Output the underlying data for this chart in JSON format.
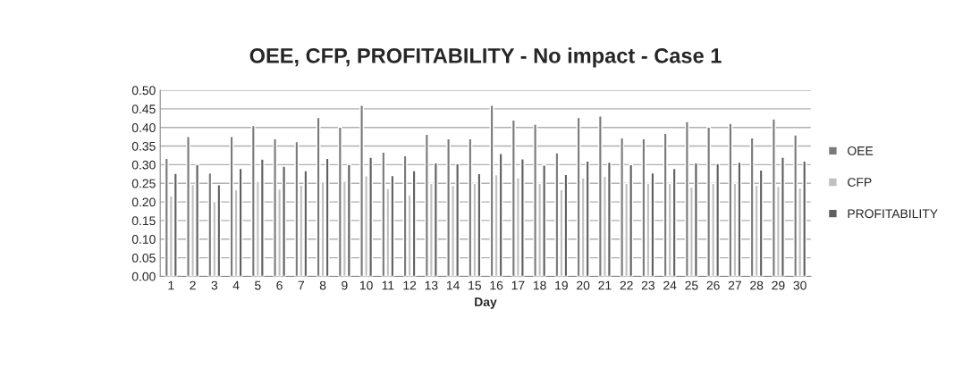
{
  "chart_data": {
    "type": "bar",
    "title": "OEE, CFP, PROFITABILITY - No impact - Case 1",
    "xlabel": "Day",
    "categories": [
      "1",
      "2",
      "3",
      "4",
      "5",
      "6",
      "7",
      "8",
      "9",
      "10",
      "11",
      "12",
      "13",
      "14",
      "15",
      "16",
      "17",
      "18",
      "19",
      "20",
      "21",
      "22",
      "23",
      "24",
      "25",
      "26",
      "27",
      "28",
      "29",
      "30"
    ],
    "series": [
      {
        "name": "OEE",
        "color": "#7a7a7a",
        "values": [
          0.317,
          0.376,
          0.278,
          0.376,
          0.405,
          0.37,
          0.362,
          0.427,
          0.401,
          0.46,
          0.334,
          0.324,
          0.382,
          0.37,
          0.37,
          0.46,
          0.42,
          0.409,
          0.332,
          0.427,
          0.431,
          0.372,
          0.37,
          0.384,
          0.416,
          0.401,
          0.411,
          0.372,
          0.423,
          0.38
        ]
      },
      {
        "name": "CFP",
        "color": "#c0c0c0",
        "values": [
          0.216,
          0.247,
          0.201,
          0.233,
          0.255,
          0.235,
          0.245,
          0.254,
          0.256,
          0.27,
          0.236,
          0.219,
          0.25,
          0.244,
          0.25,
          0.273,
          0.265,
          0.25,
          0.233,
          0.265,
          0.269,
          0.25,
          0.25,
          0.25,
          0.24,
          0.25,
          0.25,
          0.245,
          0.242,
          0.238
        ]
      },
      {
        "name": "PROFITABILITY",
        "color": "#5f5f5f",
        "values": [
          0.277,
          0.301,
          0.246,
          0.29,
          0.315,
          0.296,
          0.284,
          0.317,
          0.301,
          0.32,
          0.271,
          0.284,
          0.305,
          0.303,
          0.276,
          0.33,
          0.316,
          0.299,
          0.274,
          0.31,
          0.307,
          0.3,
          0.278,
          0.29,
          0.305,
          0.303,
          0.307,
          0.286,
          0.32,
          0.31
        ]
      }
    ],
    "ylim": [
      0,
      0.5
    ],
    "yticks": [
      {
        "value": 0,
        "label": "0.00"
      },
      {
        "value": 0.05,
        "label": "0.05"
      },
      {
        "value": 0.1,
        "label": "0.10"
      },
      {
        "value": 0.15,
        "label": "0.15"
      },
      {
        "value": 0.2,
        "label": "0.20"
      },
      {
        "value": 0.25,
        "label": "0.25"
      },
      {
        "value": 0.3,
        "label": "0.30"
      },
      {
        "value": 0.35,
        "label": "0.35"
      },
      {
        "value": 0.4,
        "label": "0.40"
      },
      {
        "value": 0.45,
        "label": "0.45"
      },
      {
        "value": 0.5,
        "label": "0.50"
      }
    ],
    "grid": "y",
    "legend": "right"
  }
}
